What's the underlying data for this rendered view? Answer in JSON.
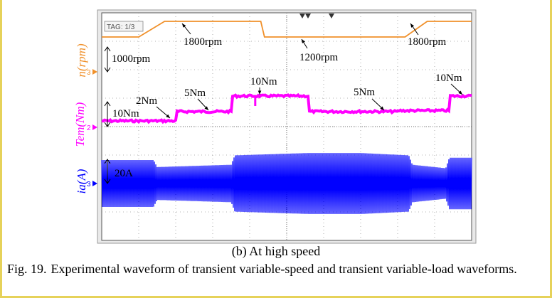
{
  "chart_data": {
    "type": "line",
    "tag": "TAG: 1/3",
    "channel_markers": [
      "3",
      "2",
      "3"
    ],
    "axis_labels": {
      "speed": "n(rpm)",
      "torque": "Tem(Nm)",
      "current": "ia(A)"
    },
    "scale_labels": {
      "speed": "1000rpm",
      "torque": "10Nm",
      "current": "20A"
    },
    "colors": {
      "speed": "#f0902a",
      "torque": "#ff00ff",
      "current": "#0000ff",
      "grid": "#9a9a9a",
      "background": "#ffffff"
    },
    "speed_annotations": [
      "1800rpm",
      "1200rpm",
      "1800rpm"
    ],
    "torque_annotations": [
      "2Nm",
      "5Nm",
      "10Nm",
      "5Nm",
      "10Nm"
    ],
    "series": [
      {
        "name": "n(rpm)",
        "x": [
          0,
          1.0,
          1.7,
          4.3,
          4.4,
          8.2,
          8.8,
          10
        ],
        "values": [
          1200,
          1200,
          1800,
          1800,
          1200,
          1200,
          1800,
          1800
        ]
      },
      {
        "name": "Tem(Nm)",
        "x": [
          0,
          2.0,
          2.01,
          3.5,
          3.51,
          5.6,
          5.61,
          8.0,
          8.01,
          9.4,
          9.41,
          10
        ],
        "values": [
          2,
          2,
          5,
          5,
          10,
          10,
          5,
          5,
          5.3,
          5.3,
          10,
          10
        ]
      },
      {
        "name": "ia(A)",
        "x": [
          0,
          1.4,
          1.5,
          3.5,
          3.6,
          5.6,
          7.0,
          8.3,
          8.4,
          9.3,
          9.4,
          10
        ],
        "values": [
          20,
          20,
          14,
          16,
          24,
          26,
          26,
          24,
          16,
          13,
          22,
          22
        ]
      }
    ],
    "xlim": [
      0,
      10
    ]
  },
  "subcaption": "(b) At high speed",
  "figure_caption": {
    "label": "Fig. 19.",
    "text": "Experimental waveform of transient variable-speed and transient variable-load waveforms."
  }
}
